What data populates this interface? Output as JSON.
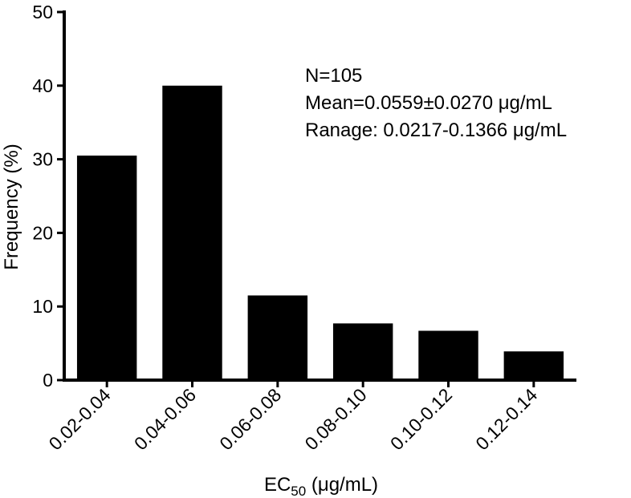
{
  "chart_data": {
    "type": "bar",
    "categories": [
      "0.02-0.04",
      "0.04-0.06",
      "0.06-0.08",
      "0.08-0.10",
      "0.10-0.12",
      "0.12-0.14"
    ],
    "values": [
      30.5,
      40.0,
      11.5,
      7.7,
      6.7,
      3.9
    ],
    "ylim": [
      0,
      50
    ],
    "yticks": [
      "0",
      "10",
      "20",
      "30",
      "40",
      "50"
    ],
    "ylabel": "Frequency  (%)",
    "xlabel": {
      "main": "EC",
      "sub": "50",
      "unit": " (μg/mL)"
    },
    "annotations": [
      "N=105",
      "Mean=0.0559±0.0270 μg/mL",
      "Ranage: 0.0217-0.1366 μg/mL"
    ],
    "bar_color": "#000000",
    "grid": false
  }
}
